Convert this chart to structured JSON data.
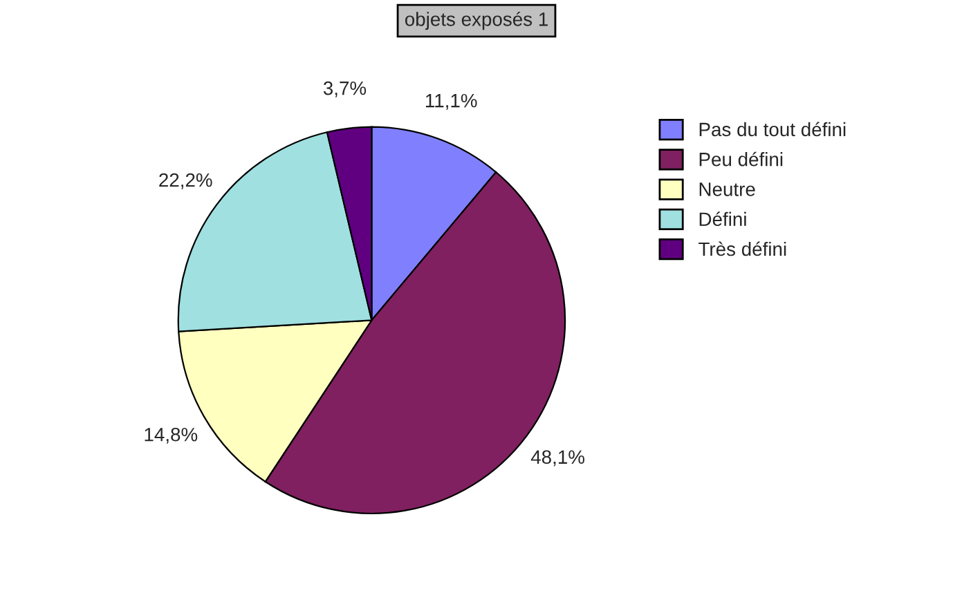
{
  "chart_data": {
    "type": "pie",
    "title": "objets exposés 1",
    "categories": [
      "Pas du tout défini",
      "Peu défini",
      "Neutre",
      "Défini",
      "Très défini"
    ],
    "values": [
      11.1,
      48.1,
      14.8,
      22.2,
      3.7
    ],
    "colors": [
      "#8080ff",
      "#802060",
      "#ffffc0",
      "#a0e0e0",
      "#600080"
    ],
    "value_labels": [
      "11,1%",
      "48,1%",
      "14,8%",
      "22,2%",
      "3,7%"
    ],
    "legend": "right"
  }
}
